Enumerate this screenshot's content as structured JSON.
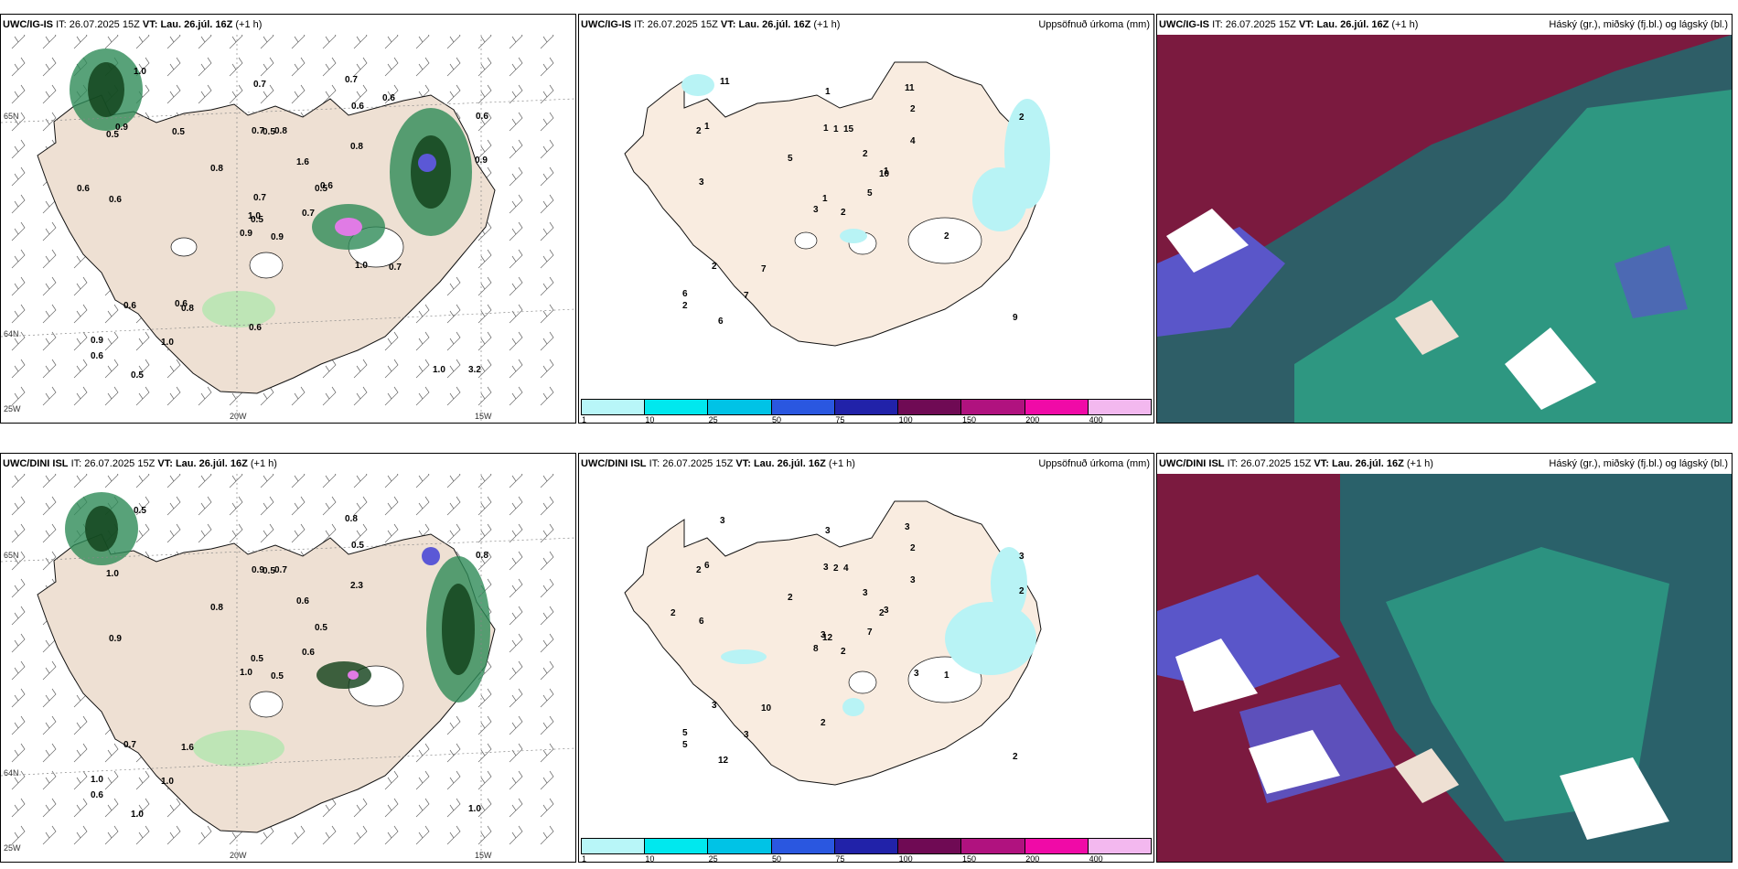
{
  "colors": {
    "land": "#eee0d3",
    "land_sea_outline": "#111111",
    "sea": "#ffffff",
    "precip_light": "#9fe8a3",
    "precip_mid": "#2e8b57",
    "precip_dark": "#0f3f18",
    "precip_heavy": "#5b58d6",
    "precip_extreme": "#e07be5",
    "accum_light": "#b8f3f5",
    "cloud_high": "#7b1a3f",
    "cloud_mid": "#1c6f72",
    "cloud_low": "#5a56c9",
    "cloud_bright": "#2ecf9b"
  },
  "colorbar": {
    "colors": [
      "#b8f6f8",
      "#00e8ee",
      "#00c3e6",
      "#2a57e0",
      "#2122a9",
      "#6f0a54",
      "#b0127f",
      "#f00aa7",
      "#f3b8ef"
    ],
    "labels": [
      "1",
      "10",
      "25",
      "50",
      "75",
      "100",
      "150",
      "200",
      "400"
    ]
  },
  "rows": [
    {
      "model": "UWC/IG-IS",
      "it_label": "IT:",
      "it_value": "26.07.2025 15Z",
      "vt_label": "VT:",
      "vt_value": "Lau. 26.júl. 16Z",
      "lead": "(+1 h)",
      "axis": {
        "lat_top": "65N",
        "lat_bottom": "64N",
        "lon_left": "20W",
        "lon_right": "15W",
        "corner": "25W"
      },
      "precip_values": [
        "0.9",
        "0.5",
        "0.5",
        "0.9",
        "0.5",
        "0.8",
        "0.7",
        "0.8",
        "0.6",
        "0.7",
        "1.0",
        "3.2",
        "0.6",
        "0.6",
        "0.9",
        "0.8",
        "0.5",
        "0.7",
        "1.6",
        "0.6",
        "0.8",
        "0.6",
        "1.0",
        "0.5",
        "0.6",
        "0.7",
        "0.9",
        "0.7",
        "0.6",
        "1.0",
        "0.9",
        "1.0",
        "0.6",
        "0.7",
        "0.5",
        "0.6",
        "0.6",
        "1.0"
      ],
      "accum_values": [
        "2",
        "2",
        "1",
        "6",
        "10",
        "7",
        "11",
        "15",
        "2",
        "5",
        "11",
        "9",
        "3",
        "2",
        "3",
        "4",
        "6",
        "1",
        "2",
        "2",
        "5",
        "2",
        "7",
        "1",
        "1",
        "2",
        "1",
        "1"
      ]
    },
    {
      "model": "UWC/DINI ISL",
      "it_label": "IT:",
      "it_value": "26.07.2025 15Z",
      "vt_label": "VT:",
      "vt_value": "Lau. 26.júl. 16Z",
      "lead": "(+1 h)",
      "axis": {
        "lat_top": "65N",
        "lat_bottom": "64N",
        "lon_left": "20W",
        "lon_right": "15W",
        "corner": "25W"
      },
      "precip_values": [
        "0.5",
        "1.0",
        "0.5",
        "1.0",
        "0.5",
        "1.6",
        "0.8",
        "0.7",
        "0.5",
        "0.6",
        "0.5",
        "1.0",
        "0.9",
        "0.8",
        "1.0",
        "2.3",
        "1.0",
        "0.9",
        "0.6",
        "0.7",
        "0.8",
        "0.6",
        "1.0",
        "0.5"
      ],
      "accum_values": [
        "2",
        "2",
        "12",
        "5",
        "2",
        "10",
        "3",
        "4",
        "2",
        "7",
        "3",
        "2",
        "6",
        "3",
        "8",
        "3",
        "12",
        "3",
        "3",
        "3",
        "2",
        "5",
        "3",
        "2",
        "3",
        "1",
        "6",
        "3",
        "2",
        "3",
        "2",
        "3",
        "2"
      ]
    }
  ],
  "panel_titles": {
    "accum": "Uppsöfnuð úrkoma (mm)",
    "cloud": "Háský (gr.), miðský (fj.bl.) og lágský (bl.)"
  }
}
